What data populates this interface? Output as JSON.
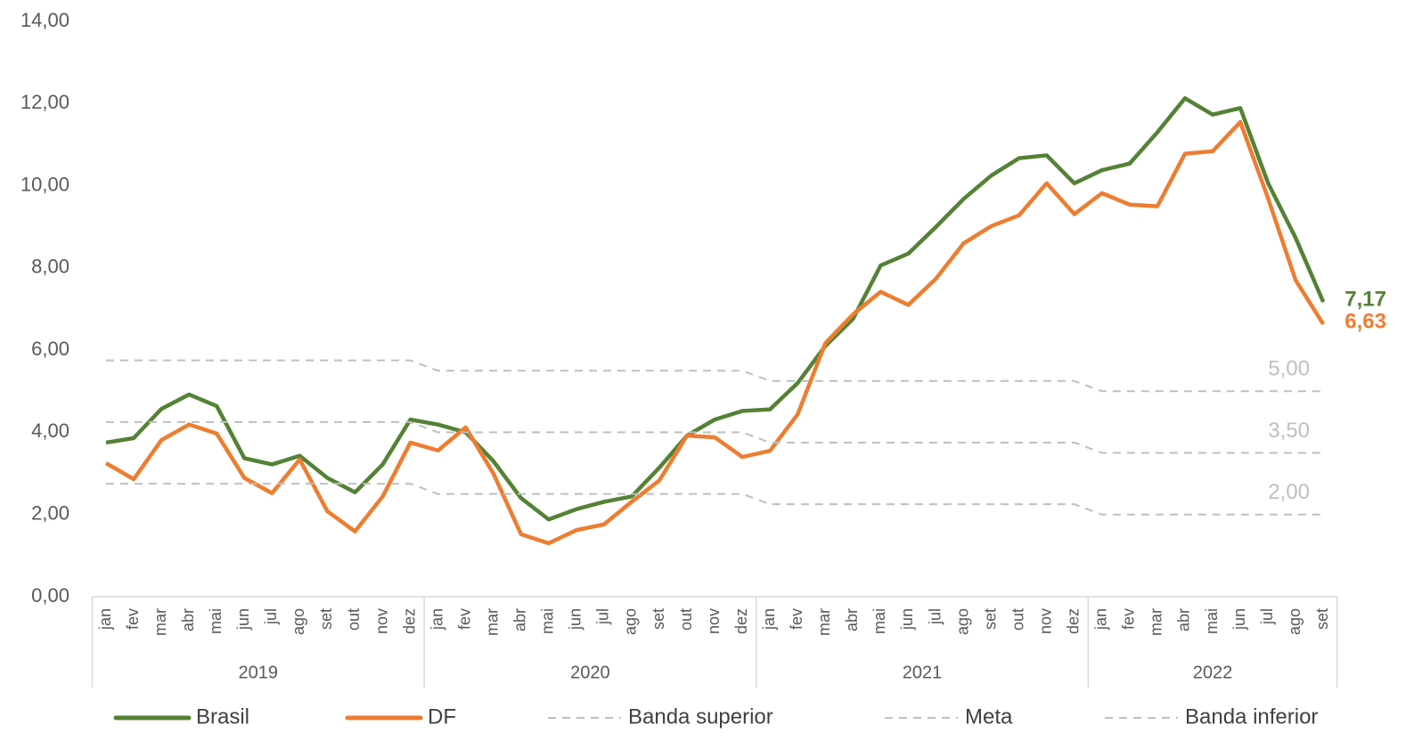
{
  "chart_data": {
    "type": "line",
    "categories": [
      "jan",
      "fev",
      "mar",
      "abr",
      "mai",
      "jun",
      "jul",
      "ago",
      "set",
      "out",
      "nov",
      "dez",
      "jan",
      "fev",
      "mar",
      "abr",
      "mai",
      "jun",
      "jul",
      "ago",
      "set",
      "out",
      "nov",
      "dez",
      "jan",
      "fev",
      "mar",
      "abr",
      "mai",
      "jun",
      "jul",
      "ago",
      "set",
      "out",
      "nov",
      "dez",
      "jan",
      "fev",
      "mar",
      "abr",
      "mai",
      "jun",
      "jul",
      "ago",
      "set"
    ],
    "groups": [
      {
        "label": "2019",
        "size": 12
      },
      {
        "label": "2020",
        "size": 12
      },
      {
        "label": "2021",
        "size": 12
      },
      {
        "label": "2022",
        "size": 9
      }
    ],
    "ylim": [
      0,
      14
    ],
    "yticks": [
      {
        "value": 0,
        "label": "0,00"
      },
      {
        "value": 2,
        "label": "2,00"
      },
      {
        "value": 4,
        "label": "4,00"
      },
      {
        "value": 6,
        "label": "6,00"
      },
      {
        "value": 8,
        "label": "8,00"
      },
      {
        "value": 10,
        "label": "10,00"
      },
      {
        "value": 12,
        "label": "12,00"
      },
      {
        "value": 14,
        "label": "14,00"
      }
    ],
    "grid": false,
    "legend": "bottom",
    "series": [
      {
        "name": "Brasil",
        "color": "#548235",
        "dashed": false,
        "bold_label": true,
        "values": [
          3.75,
          3.86,
          4.57,
          4.92,
          4.64,
          3.37,
          3.22,
          3.43,
          2.89,
          2.54,
          3.22,
          4.31,
          4.19,
          4.0,
          3.3,
          2.4,
          1.88,
          2.13,
          2.31,
          2.44,
          3.14,
          3.92,
          4.31,
          4.52,
          4.56,
          5.2,
          6.1,
          6.76,
          8.06,
          8.35,
          9.0,
          9.68,
          10.25,
          10.67,
          10.74,
          10.06,
          10.38,
          10.54,
          11.3,
          12.13,
          11.73,
          11.89,
          10.07,
          8.73,
          7.17
        ],
        "value_labels": [
          null,
          null,
          null,
          null,
          null,
          null,
          null,
          null,
          null,
          null,
          null,
          null,
          null,
          null,
          null,
          null,
          null,
          null,
          null,
          null,
          null,
          null,
          null,
          null,
          null,
          null,
          null,
          null,
          null,
          null,
          null,
          null,
          null,
          null,
          null,
          null,
          null,
          null,
          null,
          null,
          null,
          null,
          null,
          null,
          "7,17"
        ]
      },
      {
        "name": "DF",
        "color": "#ed7d31",
        "dashed": false,
        "bold_label": true,
        "values": [
          3.25,
          2.86,
          3.81,
          4.19,
          3.97,
          2.89,
          2.52,
          3.34,
          2.08,
          1.59,
          2.44,
          3.75,
          3.56,
          4.12,
          3.0,
          1.52,
          1.3,
          1.62,
          1.76,
          2.31,
          2.83,
          3.92,
          3.88,
          3.4,
          3.55,
          4.44,
          6.17,
          6.87,
          7.42,
          7.1,
          7.74,
          8.6,
          9.02,
          9.28,
          10.06,
          9.31,
          9.82,
          9.54,
          9.5,
          10.78,
          10.84,
          11.55,
          9.7,
          7.7,
          6.63
        ],
        "value_labels": [
          null,
          null,
          null,
          null,
          null,
          null,
          null,
          null,
          null,
          null,
          null,
          null,
          null,
          null,
          null,
          null,
          null,
          null,
          null,
          null,
          null,
          null,
          null,
          null,
          null,
          null,
          null,
          null,
          null,
          null,
          null,
          null,
          null,
          null,
          null,
          null,
          null,
          null,
          null,
          null,
          null,
          null,
          null,
          null,
          "6,63"
        ]
      },
      {
        "name": "Banda superior",
        "color": "#bfbfbf",
        "dashed": true,
        "bold_label": false,
        "values": [
          5.75,
          5.75,
          5.75,
          5.75,
          5.75,
          5.75,
          5.75,
          5.75,
          5.75,
          5.75,
          5.75,
          5.75,
          5.5,
          5.5,
          5.5,
          5.5,
          5.5,
          5.5,
          5.5,
          5.5,
          5.5,
          5.5,
          5.5,
          5.5,
          5.25,
          5.25,
          5.25,
          5.25,
          5.25,
          5.25,
          5.25,
          5.25,
          5.25,
          5.25,
          5.25,
          5.25,
          5,
          5,
          5,
          5,
          5,
          5,
          5,
          5,
          5
        ],
        "value_labels": [
          null,
          null,
          null,
          null,
          null,
          null,
          null,
          null,
          null,
          null,
          null,
          null,
          null,
          null,
          null,
          null,
          null,
          null,
          null,
          null,
          null,
          null,
          null,
          null,
          null,
          null,
          null,
          null,
          null,
          null,
          null,
          null,
          null,
          null,
          null,
          null,
          null,
          null,
          null,
          null,
          null,
          null,
          null,
          null,
          "5,00"
        ]
      },
      {
        "name": "Meta",
        "color": "#bfbfbf",
        "dashed": true,
        "bold_label": false,
        "values": [
          4.25,
          4.25,
          4.25,
          4.25,
          4.25,
          4.25,
          4.25,
          4.25,
          4.25,
          4.25,
          4.25,
          4.25,
          4,
          4,
          4,
          4,
          4,
          4,
          4,
          4,
          4,
          4,
          4,
          4,
          3.75,
          3.75,
          3.75,
          3.75,
          3.75,
          3.75,
          3.75,
          3.75,
          3.75,
          3.75,
          3.75,
          3.75,
          3.5,
          3.5,
          3.5,
          3.5,
          3.5,
          3.5,
          3.5,
          3.5,
          3.5
        ],
        "value_labels": [
          null,
          null,
          null,
          null,
          null,
          null,
          null,
          null,
          null,
          null,
          null,
          null,
          null,
          null,
          null,
          null,
          null,
          null,
          null,
          null,
          null,
          null,
          null,
          null,
          null,
          null,
          null,
          null,
          null,
          null,
          null,
          null,
          null,
          null,
          null,
          null,
          null,
          null,
          null,
          null,
          null,
          null,
          null,
          null,
          "3,50"
        ]
      },
      {
        "name": "Banda inferior",
        "color": "#bfbfbf",
        "dashed": true,
        "bold_label": false,
        "values": [
          2.75,
          2.75,
          2.75,
          2.75,
          2.75,
          2.75,
          2.75,
          2.75,
          2.75,
          2.75,
          2.75,
          2.75,
          2.5,
          2.5,
          2.5,
          2.5,
          2.5,
          2.5,
          2.5,
          2.5,
          2.5,
          2.5,
          2.5,
          2.5,
          2.25,
          2.25,
          2.25,
          2.25,
          2.25,
          2.25,
          2.25,
          2.25,
          2.25,
          2.25,
          2.25,
          2.25,
          2,
          2,
          2,
          2,
          2,
          2,
          2,
          2,
          2
        ],
        "value_labels": [
          null,
          null,
          null,
          null,
          null,
          null,
          null,
          null,
          null,
          null,
          null,
          null,
          null,
          null,
          null,
          null,
          null,
          null,
          null,
          null,
          null,
          null,
          null,
          null,
          null,
          null,
          null,
          null,
          null,
          null,
          null,
          null,
          null,
          null,
          null,
          null,
          null,
          null,
          null,
          null,
          null,
          null,
          null,
          null,
          "2,00"
        ]
      }
    ]
  }
}
